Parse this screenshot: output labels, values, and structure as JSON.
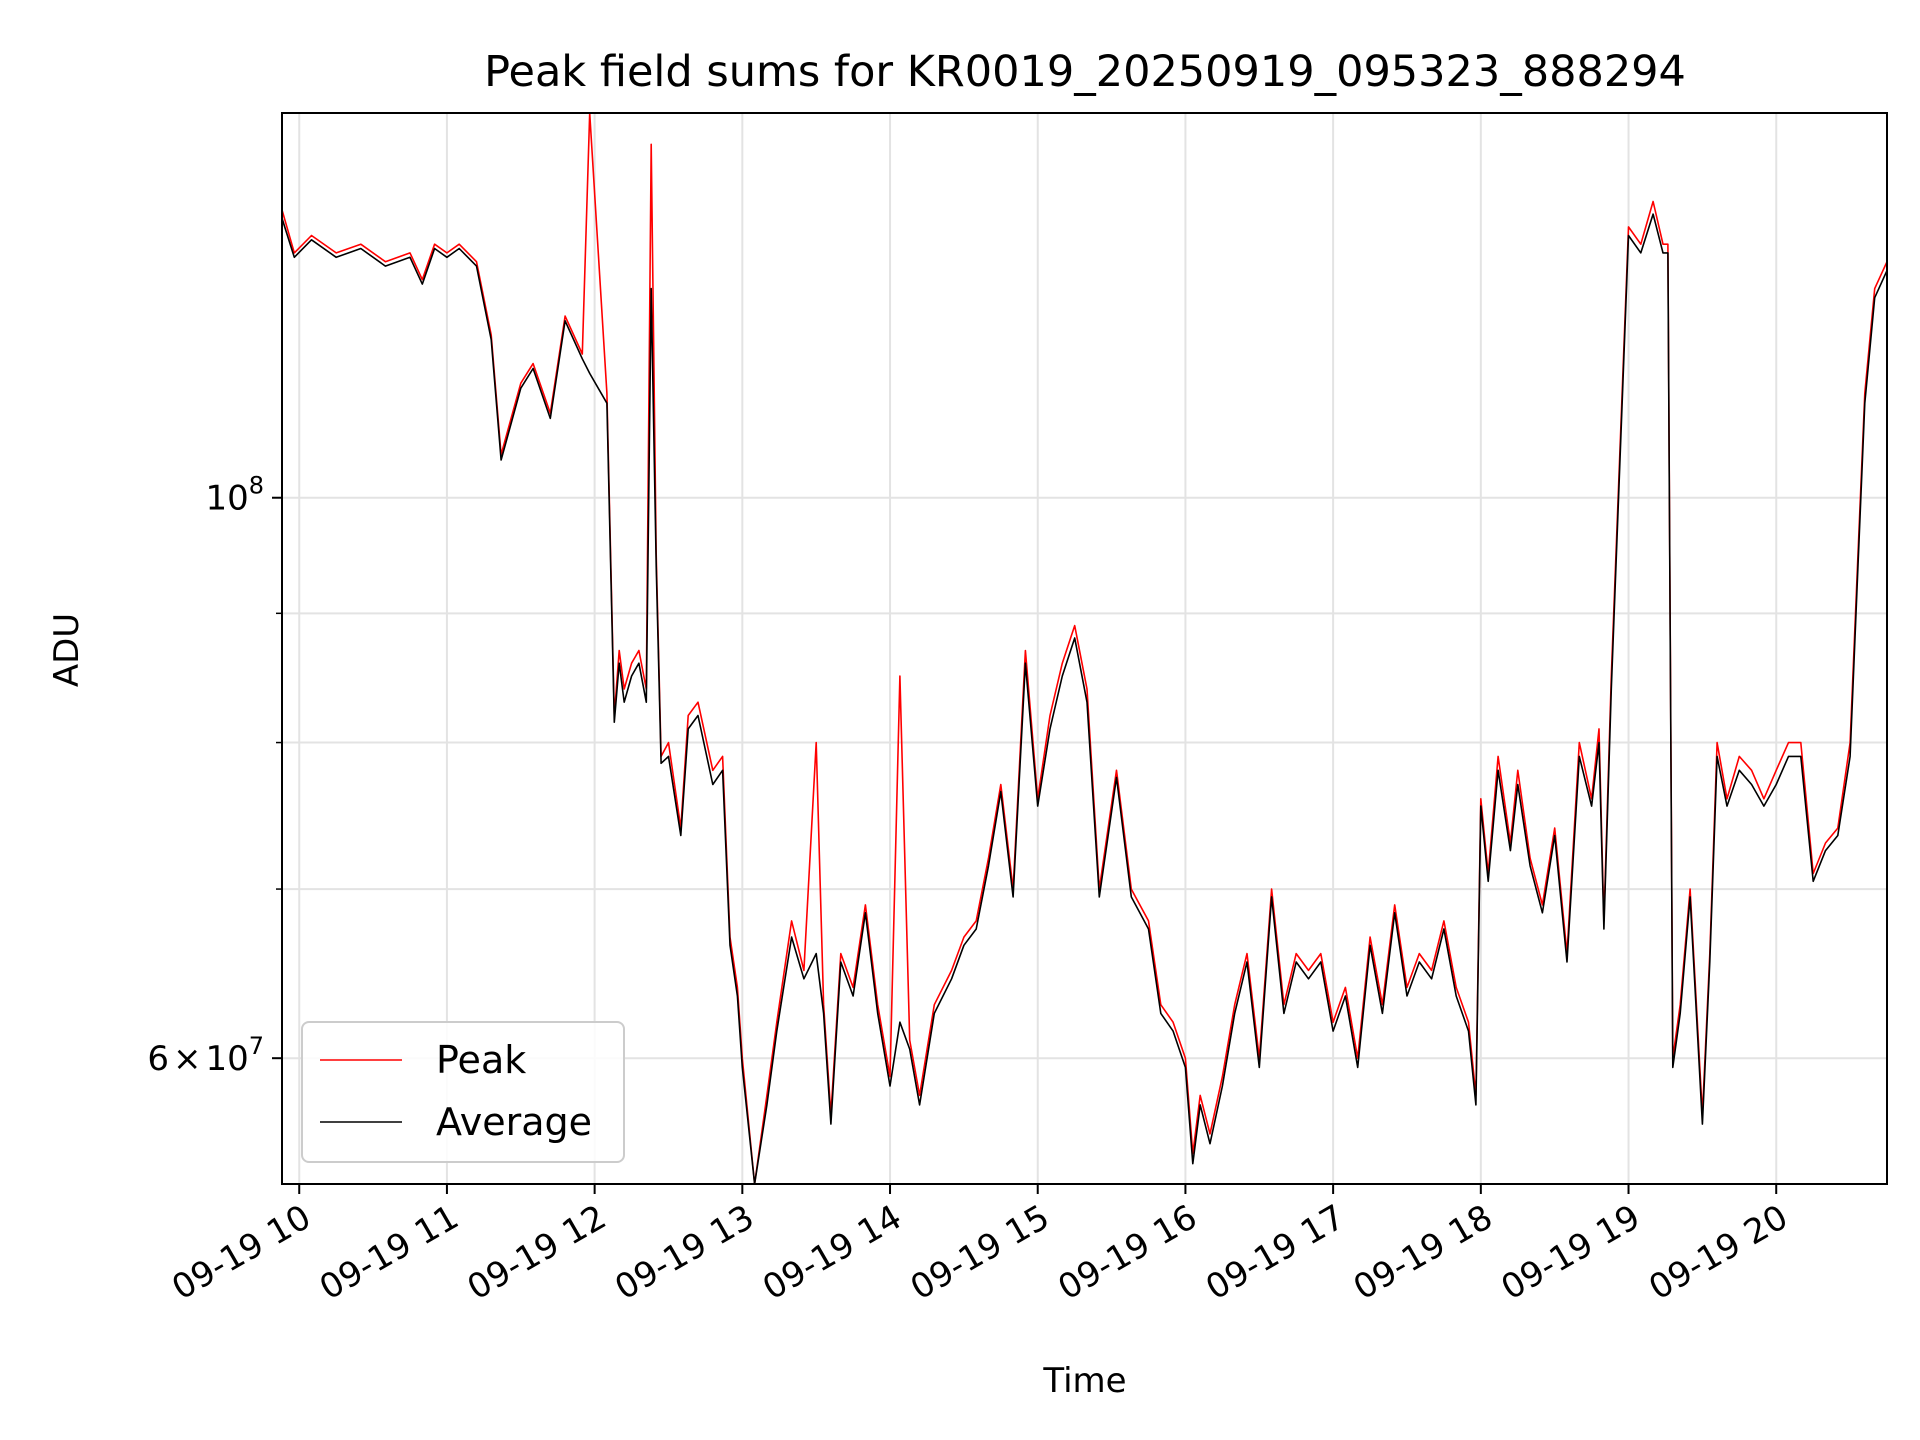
{
  "chart_data": {
    "type": "line",
    "title": "Peak field sums for KR0019_20250919_095323_888294",
    "xlabel": "Time",
    "ylabel": "ADU",
    "yscale": "log",
    "grid": true,
    "legend_position": "lower-left",
    "xlim": [
      "2025-09-19 09:53",
      "2025-09-19 20:45"
    ],
    "ylim": [
      53500000,
      142000000
    ],
    "x_ticks": [
      {
        "value": "2025-09-19 10:00",
        "label": "09-19 10"
      },
      {
        "value": "2025-09-19 11:00",
        "label": "09-19 11"
      },
      {
        "value": "2025-09-19 12:00",
        "label": "09-19 12"
      },
      {
        "value": "2025-09-19 13:00",
        "label": "09-19 13"
      },
      {
        "value": "2025-09-19 14:00",
        "label": "09-19 14"
      },
      {
        "value": "2025-09-19 15:00",
        "label": "09-19 15"
      },
      {
        "value": "2025-09-19 16:00",
        "label": "09-19 16"
      },
      {
        "value": "2025-09-19 17:00",
        "label": "09-19 17"
      },
      {
        "value": "2025-09-19 18:00",
        "label": "09-19 18"
      },
      {
        "value": "2025-09-19 19:00",
        "label": "09-19 19"
      },
      {
        "value": "2025-09-19 20:00",
        "label": "09-19 20"
      }
    ],
    "y_ticks": [
      {
        "value": 100000000,
        "base": "10",
        "exp": "8"
      },
      {
        "value": 60000000,
        "mant": "6",
        "times": "×",
        "base": "10",
        "exp": "7"
      }
    ],
    "y_minor_ticks": [
      70000000,
      80000000,
      90000000
    ],
    "x": [
      "2025-09-19 09:53",
      "2025-09-19 09:58",
      "2025-09-19 10:05",
      "2025-09-19 10:15",
      "2025-09-19 10:25",
      "2025-09-19 10:35",
      "2025-09-19 10:45",
      "2025-09-19 10:50",
      "2025-09-19 10:55",
      "2025-09-19 11:00",
      "2025-09-19 11:05",
      "2025-09-19 11:12",
      "2025-09-19 11:18",
      "2025-09-19 11:22",
      "2025-09-19 11:30",
      "2025-09-19 11:35",
      "2025-09-19 11:42",
      "2025-09-19 11:48",
      "2025-09-19 11:55",
      "2025-09-19 11:58",
      "2025-09-19 12:05",
      "2025-09-19 12:08",
      "2025-09-19 12:10",
      "2025-09-19 12:12",
      "2025-09-19 12:15",
      "2025-09-19 12:18",
      "2025-09-19 12:21",
      "2025-09-19 12:23",
      "2025-09-19 12:25",
      "2025-09-19 12:27",
      "2025-09-19 12:30",
      "2025-09-19 12:35",
      "2025-09-19 12:38",
      "2025-09-19 12:42",
      "2025-09-19 12:48",
      "2025-09-19 12:52",
      "2025-09-19 12:55",
      "2025-09-19 12:58",
      "2025-09-19 13:00",
      "2025-09-19 13:05",
      "2025-09-19 13:10",
      "2025-09-19 13:14",
      "2025-09-19 13:20",
      "2025-09-19 13:25",
      "2025-09-19 13:30",
      "2025-09-19 13:33",
      "2025-09-19 13:36",
      "2025-09-19 13:40",
      "2025-09-19 13:45",
      "2025-09-19 13:50",
      "2025-09-19 13:55",
      "2025-09-19 14:00",
      "2025-09-19 14:04",
      "2025-09-19 14:08",
      "2025-09-19 14:12",
      "2025-09-19 14:18",
      "2025-09-19 14:25",
      "2025-09-19 14:30",
      "2025-09-19 14:35",
      "2025-09-19 14:40",
      "2025-09-19 14:45",
      "2025-09-19 14:50",
      "2025-09-19 14:55",
      "2025-09-19 15:00",
      "2025-09-19 15:05",
      "2025-09-19 15:10",
      "2025-09-19 15:15",
      "2025-09-19 15:20",
      "2025-09-19 15:25",
      "2025-09-19 15:32",
      "2025-09-19 15:38",
      "2025-09-19 15:45",
      "2025-09-19 15:50",
      "2025-09-19 15:55",
      "2025-09-19 16:00",
      "2025-09-19 16:03",
      "2025-09-19 16:06",
      "2025-09-19 16:10",
      "2025-09-19 16:15",
      "2025-09-19 16:20",
      "2025-09-19 16:25",
      "2025-09-19 16:30",
      "2025-09-19 16:35",
      "2025-09-19 16:40",
      "2025-09-19 16:45",
      "2025-09-19 16:50",
      "2025-09-19 16:55",
      "2025-09-19 17:00",
      "2025-09-19 17:05",
      "2025-09-19 17:10",
      "2025-09-19 17:15",
      "2025-09-19 17:20",
      "2025-09-19 17:25",
      "2025-09-19 17:30",
      "2025-09-19 17:35",
      "2025-09-19 17:40",
      "2025-09-19 17:45",
      "2025-09-19 17:50",
      "2025-09-19 17:55",
      "2025-09-19 17:58",
      "2025-09-19 18:00",
      "2025-09-19 18:03",
      "2025-09-19 18:07",
      "2025-09-19 18:12",
      "2025-09-19 18:15",
      "2025-09-19 18:20",
      "2025-09-19 18:25",
      "2025-09-19 18:30",
      "2025-09-19 18:35",
      "2025-09-19 18:40",
      "2025-09-19 18:45",
      "2025-09-19 18:48",
      "2025-09-19 18:50",
      "2025-09-19 18:53",
      "2025-09-19 19:00",
      "2025-09-19 19:05",
      "2025-09-19 19:10",
      "2025-09-19 19:14",
      "2025-09-19 19:16",
      "2025-09-19 19:18",
      "2025-09-19 19:21",
      "2025-09-19 19:25",
      "2025-09-19 19:30",
      "2025-09-19 19:33",
      "2025-09-19 19:36",
      "2025-09-19 19:40",
      "2025-09-19 19:45",
      "2025-09-19 19:50",
      "2025-09-19 19:55",
      "2025-09-19 20:00",
      "2025-09-19 20:05",
      "2025-09-19 20:10",
      "2025-09-19 20:15",
      "2025-09-19 20:20",
      "2025-09-19 20:25",
      "2025-09-19 20:30",
      "2025-09-19 20:33",
      "2025-09-19 20:36",
      "2025-09-19 20:40",
      "2025-09-19 20:45"
    ],
    "series": [
      {
        "name": "Peak",
        "color": "#ff0000",
        "values": [
          130000000,
          125000000,
          127000000,
          125000000,
          126000000,
          124000000,
          125000000,
          122000000,
          126000000,
          125000000,
          126000000,
          124000000,
          116000000,
          104000000,
          111000000,
          113000000,
          108000000,
          118000000,
          114000000,
          142000000,
          110000000,
          82000000,
          87000000,
          84000000,
          86000000,
          87000000,
          84000000,
          138000000,
          95000000,
          79000000,
          80000000,
          74000000,
          82000000,
          83000000,
          78000000,
          79000000,
          67000000,
          64000000,
          60000000,
          53500000,
          58000000,
          62000000,
          68000000,
          65000000,
          80000000,
          63000000,
          57000000,
          66000000,
          64000000,
          69000000,
          63000000,
          59000000,
          85000000,
          61000000,
          58000000,
          63000000,
          65000000,
          67000000,
          68000000,
          72000000,
          77000000,
          70000000,
          87000000,
          76000000,
          82000000,
          86000000,
          89000000,
          84000000,
          70000000,
          78000000,
          70000000,
          68000000,
          63000000,
          62000000,
          60000000,
          55000000,
          58000000,
          56000000,
          59000000,
          63000000,
          66000000,
          60000000,
          70000000,
          63000000,
          66000000,
          65000000,
          66000000,
          62000000,
          64000000,
          60000000,
          67000000,
          63000000,
          69000000,
          64000000,
          66000000,
          65000000,
          68000000,
          64000000,
          62000000,
          58000000,
          76000000,
          71000000,
          79000000,
          73000000,
          78000000,
          72000000,
          69000000,
          74000000,
          66000000,
          80000000,
          76000000,
          81000000,
          68000000,
          85000000,
          128000000,
          126000000,
          131000000,
          126000000,
          126000000,
          60000000,
          63000000,
          70000000,
          57000000,
          66000000,
          80000000,
          76000000,
          79000000,
          78000000,
          76000000,
          78000000,
          80000000,
          80000000,
          71000000,
          73000000,
          74000000,
          80000000,
          94000000,
          110000000,
          121000000,
          124000000
        ]
      },
      {
        "name": "Average",
        "color": "#000000",
        "values": [
          129000000,
          124500000,
          126500000,
          124500000,
          125500000,
          123500000,
          124500000,
          121500000,
          125500000,
          124500000,
          125500000,
          123500000,
          115500000,
          103500000,
          110500000,
          112500000,
          107500000,
          117500000,
          113500000,
          112000000,
          109000000,
          81500000,
          86000000,
          83000000,
          85000000,
          86000000,
          83000000,
          121000000,
          94000000,
          78500000,
          79000000,
          73500000,
          81000000,
          82000000,
          77000000,
          78000000,
          66500000,
          63500000,
          59500000,
          53500000,
          57500000,
          61500000,
          67000000,
          64500000,
          66000000,
          62500000,
          56500000,
          65500000,
          63500000,
          68500000,
          62500000,
          58500000,
          62000000,
          60500000,
          57500000,
          62500000,
          64500000,
          66500000,
          67500000,
          71500000,
          76500000,
          69500000,
          86000000,
          75500000,
          81000000,
          85000000,
          88000000,
          83000000,
          69500000,
          77500000,
          69500000,
          67500000,
          62500000,
          61500000,
          59500000,
          54500000,
          57500000,
          55500000,
          58500000,
          62500000,
          65500000,
          59500000,
          69500000,
          62500000,
          65500000,
          64500000,
          65500000,
          61500000,
          63500000,
          59500000,
          66500000,
          62500000,
          68500000,
          63500000,
          65500000,
          64500000,
          67500000,
          63500000,
          61500000,
          57500000,
          75500000,
          70500000,
          78000000,
          72500000,
          77000000,
          71500000,
          68500000,
          73500000,
          65500000,
          79000000,
          75500000,
          80000000,
          67500000,
          84000000,
          127000000,
          125000000,
          129500000,
          125000000,
          125000000,
          59500000,
          62500000,
          69500000,
          56500000,
          65500000,
          79000000,
          75500000,
          78000000,
          77000000,
          75500000,
          77000000,
          79000000,
          79000000,
          70500000,
          72500000,
          73500000,
          79000000,
          93000000,
          109000000,
          120000000,
          123000000
        ]
      }
    ]
  }
}
